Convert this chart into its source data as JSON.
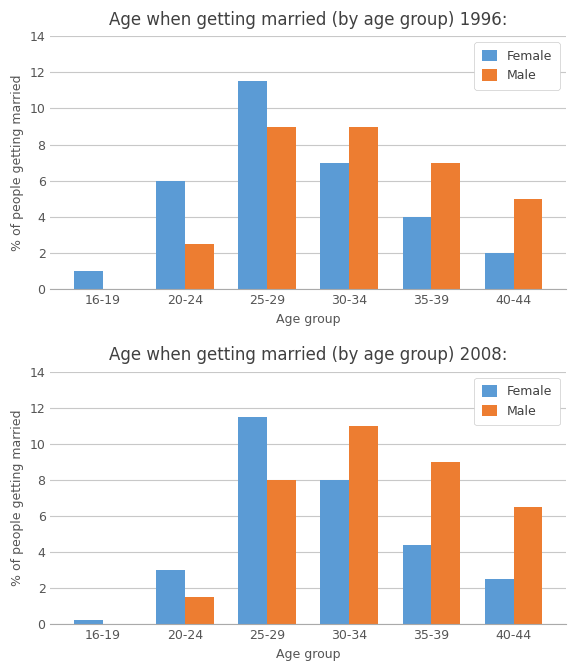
{
  "title1": "Age when getting married (by age group) 1996:",
  "title2": "Age when getting married (by age group) 2008:",
  "xlabel": "Age group",
  "ylabel": "% of people getting married",
  "categories": [
    "16-19",
    "20-24",
    "25-29",
    "30-34",
    "35-39",
    "40-44"
  ],
  "female_1996": [
    1.0,
    6.0,
    11.5,
    7.0,
    4.0,
    2.0
  ],
  "male_1996": [
    0.0,
    2.5,
    9.0,
    9.0,
    7.0,
    5.0
  ],
  "female_2008": [
    0.25,
    3.0,
    11.5,
    8.0,
    4.4,
    2.5
  ],
  "male_2008": [
    0.0,
    1.5,
    8.0,
    11.0,
    9.0,
    6.5
  ],
  "female_color": "#5B9BD5",
  "male_color": "#ED7D31",
  "ylim": [
    0,
    14
  ],
  "yticks": [
    0,
    2,
    4,
    6,
    8,
    10,
    12,
    14
  ],
  "bar_width": 0.35,
  "legend_labels": [
    "Female",
    "Male"
  ],
  "background_color": "#ffffff",
  "grid_color": "#c8c8c8",
  "title_fontsize": 12,
  "label_fontsize": 9,
  "tick_fontsize": 9
}
